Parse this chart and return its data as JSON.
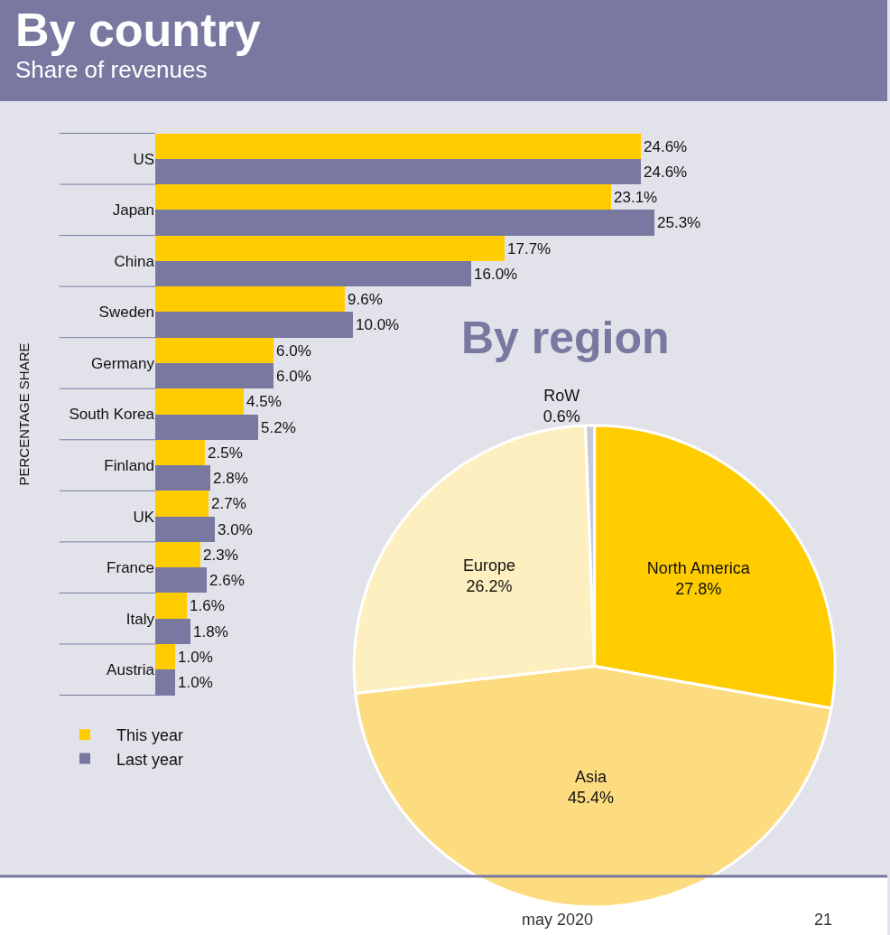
{
  "chart_data": [
    {
      "type": "bar",
      "orientation": "horizontal",
      "title": "By country",
      "subtitle": "Share of revenues",
      "ylabel": "PERCENTAGE SHARE",
      "categories": [
        "US",
        "Japan",
        "China",
        "Sweden",
        "Germany",
        "South Korea",
        "Finland",
        "UK",
        "France",
        "Italy",
        "Austria"
      ],
      "series": [
        {
          "name": "This year",
          "color": "#ffcc00",
          "values": [
            24.6,
            23.1,
            17.7,
            9.6,
            6.0,
            4.5,
            2.5,
            2.7,
            2.3,
            1.6,
            1.0
          ],
          "value_labels": [
            "24.6%",
            "23.1%",
            "17.7%",
            "9.6%",
            "6.0%",
            "4.5%",
            "2.5%",
            "2.7%",
            "2.3%",
            "1.6%",
            "1.0%"
          ]
        },
        {
          "name": "Last year",
          "color": "#7878a0",
          "values": [
            24.6,
            25.3,
            16.0,
            10.0,
            6.0,
            5.2,
            2.8,
            3.0,
            2.6,
            1.8,
            1.0
          ],
          "value_labels": [
            "24.6%",
            "25.3%",
            "16.0%",
            "10.0%",
            "6.0%",
            "5.2%",
            "2.8%",
            "3.0%",
            "2.6%",
            "1.8%",
            "1.0%"
          ]
        }
      ],
      "legend": "bottom left",
      "grid": false,
      "tick_labels": "y",
      "annotations": [
        "may 2020",
        "21"
      ]
    },
    {
      "type": "pie",
      "title": "By region",
      "categories": [
        "North America",
        "Asia",
        "Europe",
        "RoW"
      ],
      "values": [
        27.8,
        45.4,
        26.2,
        0.6
      ],
      "colors": [
        "#ffcc00",
        "#fddc80",
        "#fdefc0",
        "#c8c8d8"
      ],
      "value_labels": [
        "27.8%",
        "45.4%",
        "26.2%",
        "0.6%"
      ]
    }
  ]
}
